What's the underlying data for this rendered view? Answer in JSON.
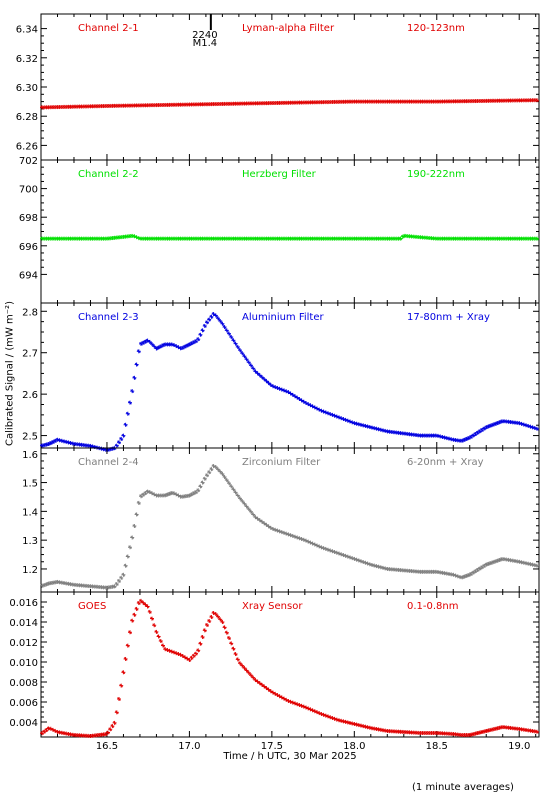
{
  "figure": {
    "xlabel": "Time / h UTC, 30 Mar 2025",
    "ylabel": "Calibrated Signal / (mW m⁻²)",
    "footnote": "(1 minute averages)",
    "marker_text": "2240",
    "marker_sub": "M1.4"
  },
  "chart_data": [
    {
      "type": "scatter",
      "channel": "Channel 2-1",
      "filter": "Lyman-alpha Filter",
      "band": "120-123nm",
      "color": "#e00000",
      "xlim": [
        16.1,
        19.12
      ],
      "ylim": [
        6.25,
        6.35
      ],
      "yticks": [
        6.26,
        6.28,
        6.3,
        6.32,
        6.34
      ],
      "ytick_labels": [
        "6.26",
        "6.28",
        "6.30",
        "6.32",
        "6.34"
      ],
      "x": [
        16.1,
        16.5,
        17.0,
        17.5,
        18.0,
        18.5,
        19.12
      ],
      "y": [
        6.286,
        6.287,
        6.288,
        6.289,
        6.29,
        6.29,
        6.291
      ]
    },
    {
      "type": "scatter",
      "channel": "Channel 2-2",
      "filter": "Herzberg Filter",
      "band": "190-222nm",
      "color": "#00e000",
      "xlim": [
        16.1,
        19.12
      ],
      "ylim": [
        692,
        702
      ],
      "yticks": [
        694,
        696,
        698,
        700,
        702
      ],
      "ytick_labels": [
        "694",
        "696",
        "698",
        "700",
        "702"
      ],
      "x": [
        16.1,
        16.5,
        16.66,
        16.7,
        17.0,
        17.5,
        18.0,
        18.28,
        18.3,
        18.5,
        19.12
      ],
      "y": [
        696.5,
        696.5,
        696.7,
        696.5,
        696.5,
        696.5,
        696.5,
        696.5,
        696.7,
        696.5,
        696.5
      ]
    },
    {
      "type": "scatter",
      "channel": "Channel 2-3",
      "filter": "Aluminium Filter",
      "band": "17-80nm + Xray",
      "color": "#0000e0",
      "xlim": [
        16.1,
        19.12
      ],
      "ylim": [
        2.47,
        2.82
      ],
      "yticks": [
        2.5,
        2.6,
        2.7,
        2.8
      ],
      "ytick_labels": [
        "2.5",
        "2.6",
        "2.7",
        "2.8"
      ],
      "x": [
        16.1,
        16.15,
        16.2,
        16.3,
        16.4,
        16.5,
        16.55,
        16.6,
        16.65,
        16.7,
        16.75,
        16.8,
        16.85,
        16.9,
        16.95,
        17.0,
        17.05,
        17.1,
        17.15,
        17.2,
        17.3,
        17.4,
        17.5,
        17.6,
        17.7,
        17.8,
        17.9,
        18.0,
        18.1,
        18.2,
        18.3,
        18.4,
        18.5,
        18.6,
        18.65,
        18.7,
        18.8,
        18.9,
        19.0,
        19.12
      ],
      "y": [
        2.475,
        2.48,
        2.49,
        2.48,
        2.475,
        2.465,
        2.47,
        2.5,
        2.6,
        2.72,
        2.73,
        2.71,
        2.72,
        2.72,
        2.71,
        2.72,
        2.73,
        2.77,
        2.795,
        2.77,
        2.71,
        2.655,
        2.62,
        2.605,
        2.58,
        2.56,
        2.545,
        2.53,
        2.52,
        2.51,
        2.505,
        2.5,
        2.5,
        2.49,
        2.487,
        2.495,
        2.52,
        2.535,
        2.53,
        2.515
      ]
    },
    {
      "type": "scatter",
      "channel": "Channel 2-4",
      "filter": "Zirconium Filter",
      "band": "6-20nm + Xray",
      "color": "#7f7f7f",
      "xlim": [
        16.1,
        19.12
      ],
      "ylim": [
        1.12,
        1.62
      ],
      "yticks": [
        1.2,
        1.3,
        1.4,
        1.5,
        1.6
      ],
      "ytick_labels": [
        "1.2",
        "1.3",
        "1.4",
        "1.5",
        "1.6"
      ],
      "x": [
        16.1,
        16.15,
        16.2,
        16.3,
        16.4,
        16.5,
        16.55,
        16.6,
        16.65,
        16.7,
        16.75,
        16.8,
        16.85,
        16.9,
        16.95,
        17.0,
        17.05,
        17.1,
        17.15,
        17.2,
        17.3,
        17.4,
        17.5,
        17.6,
        17.7,
        17.8,
        17.9,
        18.0,
        18.1,
        18.2,
        18.3,
        18.4,
        18.5,
        18.6,
        18.65,
        18.7,
        18.8,
        18.9,
        19.0,
        19.12
      ],
      "y": [
        1.14,
        1.15,
        1.155,
        1.145,
        1.14,
        1.135,
        1.14,
        1.18,
        1.3,
        1.45,
        1.47,
        1.455,
        1.455,
        1.465,
        1.45,
        1.455,
        1.47,
        1.52,
        1.56,
        1.53,
        1.45,
        1.38,
        1.34,
        1.32,
        1.3,
        1.275,
        1.255,
        1.235,
        1.215,
        1.2,
        1.195,
        1.19,
        1.19,
        1.18,
        1.17,
        1.18,
        1.215,
        1.235,
        1.225,
        1.21
      ]
    },
    {
      "type": "scatter",
      "channel": "GOES",
      "filter": "Xray Sensor",
      "band": "0.1-0.8nm",
      "color": "#e00000",
      "xlim": [
        16.1,
        19.12
      ],
      "ylim": [
        0.0025,
        0.017
      ],
      "yticks": [
        0.004,
        0.006,
        0.008,
        0.01,
        0.012,
        0.014,
        0.016
      ],
      "ytick_labels": [
        "0.004",
        "0.006",
        "0.008",
        "0.010",
        "0.012",
        "0.014",
        "0.016"
      ],
      "x": [
        16.1,
        16.15,
        16.2,
        16.3,
        16.4,
        16.5,
        16.55,
        16.6,
        16.65,
        16.7,
        16.75,
        16.8,
        16.85,
        16.9,
        16.95,
        17.0,
        17.05,
        17.1,
        17.15,
        17.2,
        17.3,
        17.4,
        17.5,
        17.6,
        17.7,
        17.8,
        17.9,
        18.0,
        18.1,
        18.2,
        18.3,
        18.4,
        18.5,
        18.6,
        18.65,
        18.7,
        18.8,
        18.9,
        19.0,
        19.12
      ],
      "y": [
        0.0028,
        0.0034,
        0.003,
        0.0027,
        0.0026,
        0.0028,
        0.004,
        0.009,
        0.014,
        0.0162,
        0.0155,
        0.013,
        0.0113,
        0.011,
        0.0107,
        0.0102,
        0.011,
        0.0135,
        0.015,
        0.014,
        0.01,
        0.0082,
        0.007,
        0.0061,
        0.0055,
        0.0048,
        0.0042,
        0.0038,
        0.0034,
        0.0031,
        0.003,
        0.0029,
        0.0029,
        0.0028,
        0.0027,
        0.0027,
        0.0031,
        0.0035,
        0.0033,
        0.003
      ]
    }
  ],
  "xaxis": {
    "ticks": [
      16.5,
      17.0,
      17.5,
      18.0,
      18.5,
      19.0
    ],
    "labels": [
      "16.5",
      "17.0",
      "17.5",
      "18.0",
      "18.5",
      "19.0"
    ],
    "marker_x": 17.13
  }
}
